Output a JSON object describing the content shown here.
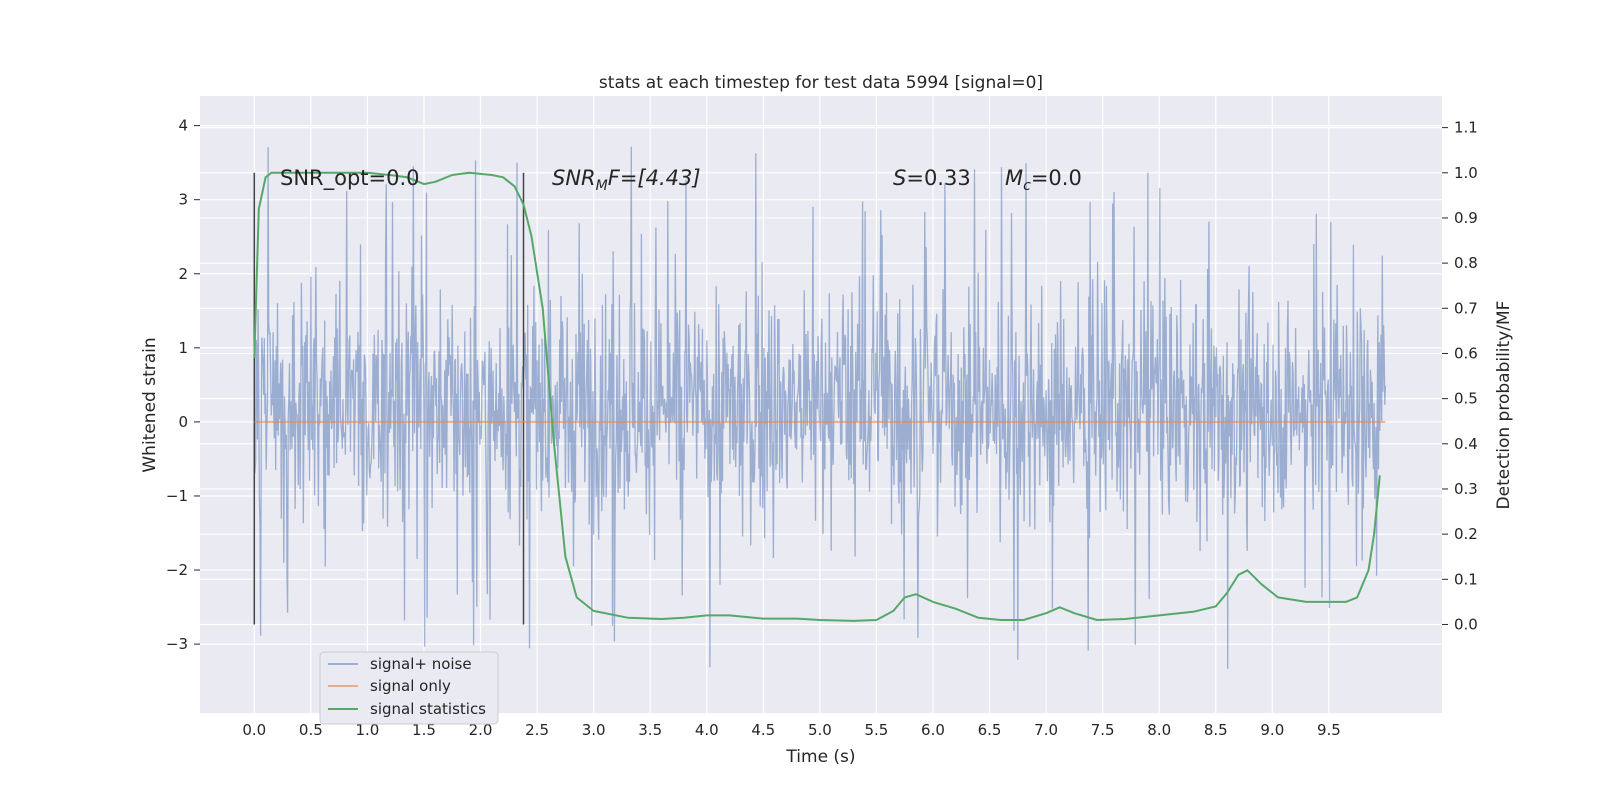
{
  "chart_data": {
    "type": "line",
    "title": "stats at each timestep for test data 5994 [signal=0]",
    "xlabel": "Time (s)",
    "ylabel_left": "Whitened strain",
    "ylabel_right": "Detection probability/MF",
    "xlim": [
      -0.48,
      10.5
    ],
    "ylim_left": [
      -3.93,
      4.4
    ],
    "ylim_right": [
      -0.196,
      1.17
    ],
    "x_ticks": [
      "0.0",
      "0.5",
      "1.0",
      "1.5",
      "2.0",
      "2.5",
      "3.0",
      "3.5",
      "4.0",
      "4.5",
      "5.0",
      "5.5",
      "6.0",
      "6.5",
      "7.0",
      "7.5",
      "8.0",
      "8.5",
      "9.0",
      "9.5"
    ],
    "y_left_ticks": [
      "4",
      "3",
      "2",
      "1",
      "0",
      "−1",
      "−2",
      "−3"
    ],
    "y_left_tick_values": [
      4,
      3,
      2,
      1,
      0,
      -1,
      -2,
      -3
    ],
    "y_right_ticks": [
      "1.1",
      "1.0",
      "0.9",
      "0.8",
      "0.7",
      "0.6",
      "0.5",
      "0.4",
      "0.3",
      "0.2",
      "0.1",
      "0.0"
    ],
    "y_right_tick_values": [
      1.1,
      1.0,
      0.9,
      0.8,
      0.7,
      0.6,
      0.5,
      0.4,
      0.3,
      0.2,
      0.1,
      0.0
    ],
    "grid": true,
    "legend_placement": "lower-left",
    "annotations": {
      "snr_opt": "SNR_opt=0.0",
      "snr_mf_base": "SNR",
      "snr_mf_sub": "M",
      "snr_mf_suffix": "F=[4.43]",
      "s_base": "S",
      "s_suffix": "=0.33",
      "mc_base": "M",
      "mc_sub": "c",
      "mc_suffix": "=0.0"
    },
    "vertical_markers": {
      "x": [
        0.0,
        2.38
      ],
      "y_range_right": [
        0.0,
        1.0
      ]
    },
    "series": [
      {
        "name": "signal+ noise",
        "color": "#4c72b0",
        "axis": "left",
        "x_range": [
          0.0,
          10.0
        ],
        "envelope_typical": [
          -1.0,
          1.45
        ],
        "envelope_extreme": [
          -3.55,
          4.05
        ],
        "note_samples": "dense noisy trace; drawn procedurally"
      },
      {
        "name": "signal only",
        "color": "#dd8452",
        "axis": "left",
        "x": [
          0.0,
          10.0
        ],
        "y": [
          0.0,
          0.0
        ]
      },
      {
        "name": "signal statistics",
        "color": "#55a868",
        "axis": "right",
        "x": [
          0.0,
          0.04,
          0.1,
          0.15,
          0.3,
          0.6,
          1.0,
          1.2,
          1.35,
          1.5,
          1.6,
          1.75,
          1.9,
          2.1,
          2.2,
          2.3,
          2.38,
          2.45,
          2.55,
          2.65,
          2.75,
          2.85,
          3.0,
          3.3,
          3.6,
          3.8,
          4.0,
          4.2,
          4.5,
          4.8,
          5.0,
          5.3,
          5.5,
          5.65,
          5.75,
          5.85,
          6.0,
          6.2,
          6.4,
          6.6,
          6.8,
          7.0,
          7.12,
          7.25,
          7.45,
          7.7,
          8.0,
          8.3,
          8.5,
          8.6,
          8.7,
          8.78,
          8.9,
          9.05,
          9.3,
          9.5,
          9.65,
          9.75,
          9.85,
          9.9,
          9.95
        ],
        "y": [
          0.59,
          0.92,
          0.99,
          1.0,
          1.0,
          1.0,
          1.0,
          0.995,
          0.99,
          0.975,
          0.98,
          0.995,
          1.0,
          0.995,
          0.99,
          0.97,
          0.93,
          0.86,
          0.7,
          0.4,
          0.15,
          0.06,
          0.03,
          0.015,
          0.012,
          0.015,
          0.02,
          0.02,
          0.013,
          0.013,
          0.01,
          0.008,
          0.01,
          0.03,
          0.06,
          0.067,
          0.05,
          0.035,
          0.015,
          0.01,
          0.01,
          0.025,
          0.038,
          0.025,
          0.01,
          0.012,
          0.02,
          0.028,
          0.04,
          0.07,
          0.11,
          0.12,
          0.09,
          0.06,
          0.05,
          0.05,
          0.05,
          0.06,
          0.12,
          0.2,
          0.33
        ]
      }
    ]
  },
  "colors": {
    "axes_background": "#eaeaf2",
    "grid": "#ffffff",
    "vline": "#444444",
    "signal_noise": "#4c72b0",
    "signal_only": "#dd8452",
    "signal_stats": "#55a868"
  }
}
